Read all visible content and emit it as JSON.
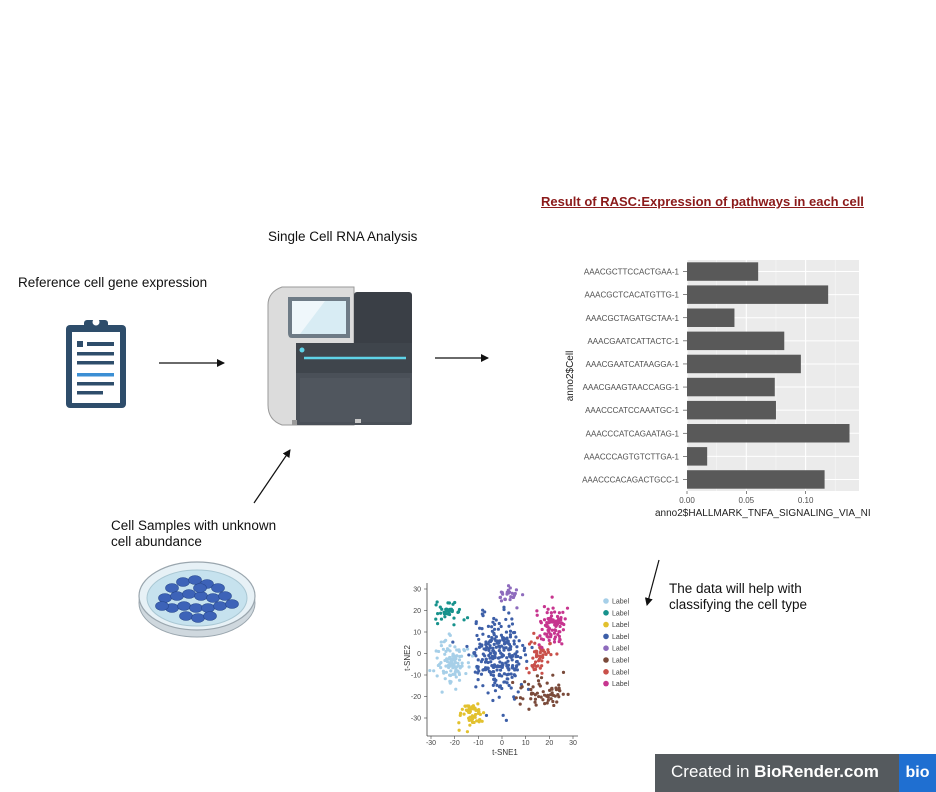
{
  "labels": {
    "reference": "Reference cell gene expression",
    "single_cell": "Single Cell RNA Analysis",
    "samples_line1": "Cell Samples with unknown",
    "samples_line2": "cell abundance",
    "result_title": "Result of RASC:Expression of pathways in each cell",
    "data_help_line1": "The data will help with",
    "data_help_line2": "classifying the cell type"
  },
  "badge": {
    "prefix": "Created in ",
    "brand": "BioRender.com",
    "logo": "bio"
  },
  "icons": [
    "clipboard-icon",
    "sequencer-machine-icon",
    "petri-dish-icon"
  ],
  "chart_data": [
    {
      "type": "bar",
      "orientation": "horizontal",
      "categories": [
        "AAACGCTTCCACTGAA-1",
        "AAACGCTCACATGTTG-1",
        "AAACGCTAGATGCTAA-1",
        "AAACGAATCATTACTC-1",
        "AAACGAATCATAAGGA-1",
        "AAACGAAGTAACCAGG-1",
        "AAACCCATCCAAATGC-1",
        "AAACCCATCAGAATAG-1",
        "AAACCCAGTGTCTTGA-1",
        "AAACCCACAGACTGCC-1"
      ],
      "values": [
        0.06,
        0.119,
        0.04,
        0.082,
        0.096,
        0.074,
        0.075,
        0.137,
        0.017,
        0.116
      ],
      "xlabel": "anno2$HALLMARK_TNFA_SIGNALING_VIA_NI",
      "ylabel": "anno2$Cell",
      "xticks": [
        "0.00",
        "0.05",
        "0.10"
      ],
      "xlim": [
        0,
        0.145
      ],
      "bar_color": "#595959",
      "panel_color": "#ebebeb",
      "grid": true
    },
    {
      "type": "scatter",
      "xlabel": "t-SNE1",
      "ylabel": "t-SNE2",
      "xticks": [
        "-30",
        "-20",
        "-10",
        "0",
        "10",
        "20",
        "30"
      ],
      "yticks": [
        "30",
        "20",
        "10",
        "0",
        "-10",
        "-20",
        "-30"
      ],
      "xlim": [
        -30,
        30
      ],
      "ylim": [
        -35,
        32
      ],
      "legend_position": "right",
      "clusters": [
        {
          "name": "Label",
          "color": "#a6cfe8",
          "cx": -21,
          "cy": -3,
          "sx": 4,
          "sy": 6,
          "n": 110
        },
        {
          "name": "Label",
          "color": "#17928c",
          "cx": -22,
          "cy": 19,
          "sx": 3,
          "sy": 3,
          "n": 40
        },
        {
          "name": "Label",
          "color": "#e2c12e",
          "cx": -13,
          "cy": -28,
          "sx": 3,
          "sy": 3,
          "n": 55
        },
        {
          "name": "Label",
          "color": "#3d5fa8",
          "cx": -2,
          "cy": -1,
          "sx": 6,
          "sy": 10,
          "n": 260
        },
        {
          "name": "Label",
          "color": "#8e6bbd",
          "cx": 3,
          "cy": 27,
          "sx": 2.5,
          "sy": 2,
          "n": 30
        },
        {
          "name": "Label",
          "color": "#7a4a3a",
          "cx": 16,
          "cy": -18,
          "sx": 6,
          "sy": 4,
          "n": 65
        },
        {
          "name": "Label",
          "color": "#c9504a",
          "cx": 16,
          "cy": 0,
          "sx": 2.5,
          "sy": 5,
          "n": 50
        },
        {
          "name": "Label",
          "color": "#c7358f",
          "cx": 21,
          "cy": 13,
          "sx": 4,
          "sy": 5,
          "n": 90
        }
      ]
    }
  ]
}
